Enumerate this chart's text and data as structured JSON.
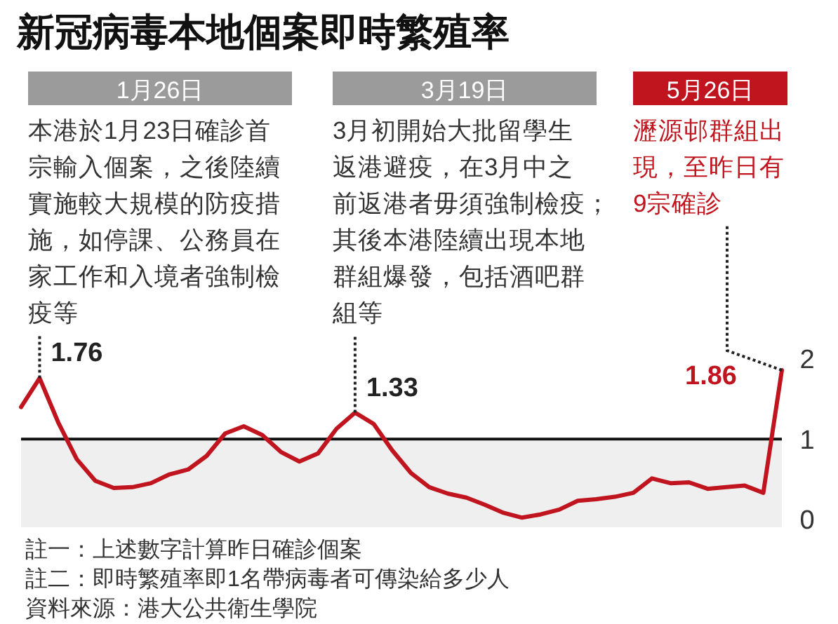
{
  "chart_data": {
    "type": "line",
    "title": "新冠病毒本地個案即時繁殖率",
    "categories": [
      null,
      null,
      null,
      null,
      null,
      null,
      null,
      null,
      null,
      null,
      null,
      null,
      null,
      null,
      null,
      null,
      null,
      null,
      null,
      null,
      null,
      null,
      null,
      null,
      null,
      null,
      null,
      null,
      null,
      null,
      null,
      null,
      null,
      null,
      null,
      null,
      null,
      null,
      null,
      null,
      null,
      null
    ],
    "series": [
      {
        "color": "#c0141e",
        "values": [
          1.4,
          1.76,
          1.21,
          0.75,
          0.48,
          0.39,
          0.4,
          0.45,
          0.56,
          0.62,
          0.79,
          1.07,
          1.16,
          1.05,
          0.84,
          0.72,
          0.82,
          1.13,
          1.33,
          1.19,
          0.86,
          0.58,
          0.4,
          0.32,
          0.27,
          0.18,
          0.08,
          0.02,
          0.06,
          0.12,
          0.23,
          0.25,
          0.28,
          0.33,
          0.51,
          0.45,
          0.46,
          0.38,
          0.4,
          0.42,
          0.33,
          1.86
        ]
      }
    ],
    "value_labels": [
      null,
      "1.76",
      null,
      null,
      null,
      null,
      null,
      null,
      null,
      null,
      null,
      null,
      null,
      null,
      null,
      null,
      null,
      null,
      "1.33",
      null,
      null,
      null,
      null,
      null,
      null,
      null,
      null,
      null,
      null,
      null,
      null,
      null,
      null,
      null,
      null,
      null,
      null,
      null,
      null,
      null,
      null,
      "1.86"
    ],
    "ylim": [
      -0.1,
      2
    ],
    "yticks": [
      0,
      1,
      2
    ],
    "tick_labels": "y",
    "grid": false,
    "legend": false,
    "ref_lines": [
      {
        "axis": "y",
        "value": 1,
        "color": "#111111"
      }
    ],
    "bands": [
      {
        "axis": "y",
        "from": -0.1,
        "to": 1,
        "color": "#efefef"
      }
    ],
    "annotations": [
      "1月26日",
      "本港於1月23日確診首宗輸入個案，之後陸續實施較大規模的防疫措施，如停課、公務員在家工作和入境者強制檢疫等",
      "3月19日",
      "3月初開始大批留學生返港避疫，在3月中之前返港者毋須強制檢疫；其後本港陸續出現本地群組爆發，包括酒吧群組等",
      "5月26日",
      "瀝源邨群組出現，至昨日有9宗確診",
      "註一：上述數字計算昨日確診個案",
      "註二：即時繁殖率即1名帶病毒者可傳染給多少人",
      "資料來源：港大公共衛生學院"
    ]
  }
}
